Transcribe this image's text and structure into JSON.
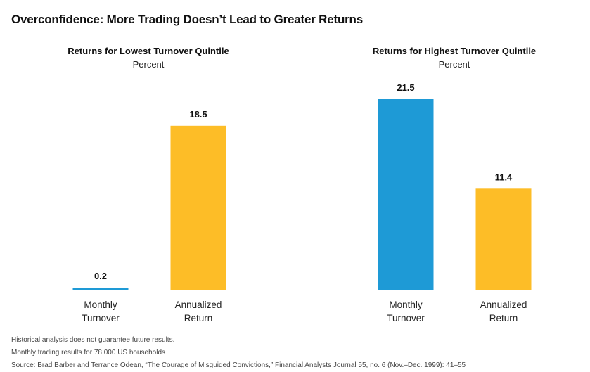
{
  "title": "Overconfidence: More Trading Doesn’t Lead to Greater Returns",
  "colors": {
    "turnover": "#1e9ad6",
    "return": "#fdbd27",
    "text": "#111111"
  },
  "chart_data": [
    {
      "type": "bar",
      "title": "Returns for Lowest Turnover Quintile",
      "subtitle": "Percent",
      "categories": [
        [
          "Monthly",
          "Turnover"
        ],
        [
          "Annualized",
          "Return"
        ]
      ],
      "values": [
        0.2,
        18.5
      ],
      "value_labels": [
        "0.2",
        "18.5"
      ],
      "bar_colors": [
        "#1e9ad6",
        "#fdbd27"
      ],
      "ylim": [
        0,
        21.5
      ],
      "grid": false
    },
    {
      "type": "bar",
      "title": "Returns for Highest Turnover Quintile",
      "subtitle": "Percent",
      "categories": [
        [
          "Monthly",
          "Turnover"
        ],
        [
          "Annualized",
          "Return"
        ]
      ],
      "values": [
        21.5,
        11.4
      ],
      "value_labels": [
        "21.5",
        "11.4"
      ],
      "bar_colors": [
        "#1e9ad6",
        "#fdbd27"
      ],
      "ylim": [
        0,
        21.5
      ],
      "grid": false
    }
  ],
  "notes": [
    "Historical analysis does not guarantee future results.",
    "Monthly trading results for 78,000 US households",
    "Source: Brad Barber and Terrance Odean, “The Courage of Misguided Convictions,” Financial Analysts Journal 55, no. 6 (Nov.–Dec. 1999): 41–55"
  ]
}
